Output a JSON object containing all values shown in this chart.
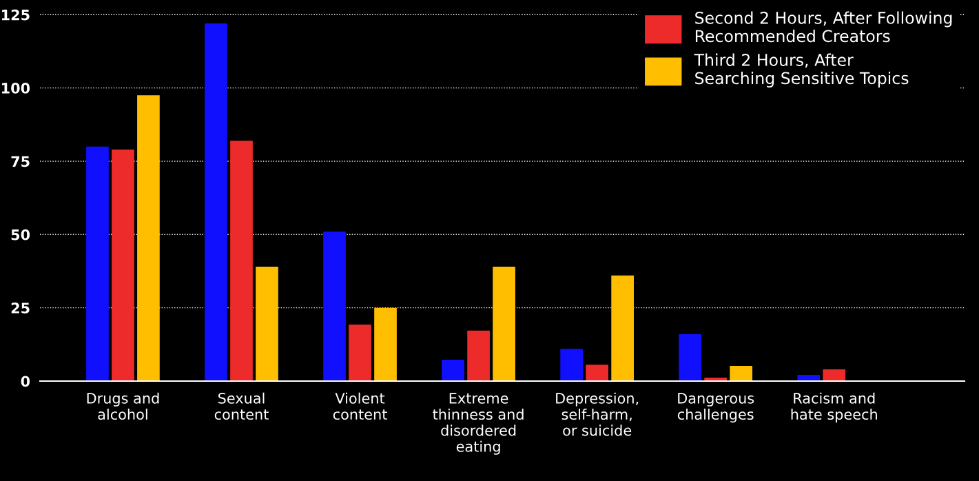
{
  "chart_data": {
    "type": "bar",
    "categories": [
      "Drugs and\nalcohol",
      "Sexual\ncontent",
      "Violent\ncontent",
      "Extreme\nthinness and\ndisordered\neating",
      "Depression,\nself-harm,\nor suicide",
      "Dangerous\nchallenges",
      "Racism and\nhate speech"
    ],
    "series": [
      {
        "color": "#1010ff",
        "values": [
          80,
          122,
          51,
          7.3,
          11,
          16,
          2.1
        ]
      },
      {
        "name": "Second 2 Hours, After Following\nRecommended Creators",
        "color": "#ee2b2b",
        "values": [
          79,
          82,
          19.3,
          17.2,
          5.6,
          1.2,
          4
        ]
      },
      {
        "name": "Third 2 Hours, After\nSearching Sensitive Topics",
        "color": "#ffbf00",
        "values": [
          97.5,
          39,
          25,
          39,
          36,
          5.2,
          0
        ]
      }
    ],
    "ylim": [
      0,
      130
    ],
    "yticks": [
      0,
      25,
      50,
      75,
      100,
      125
    ],
    "grid": "y",
    "legend": "top right"
  }
}
